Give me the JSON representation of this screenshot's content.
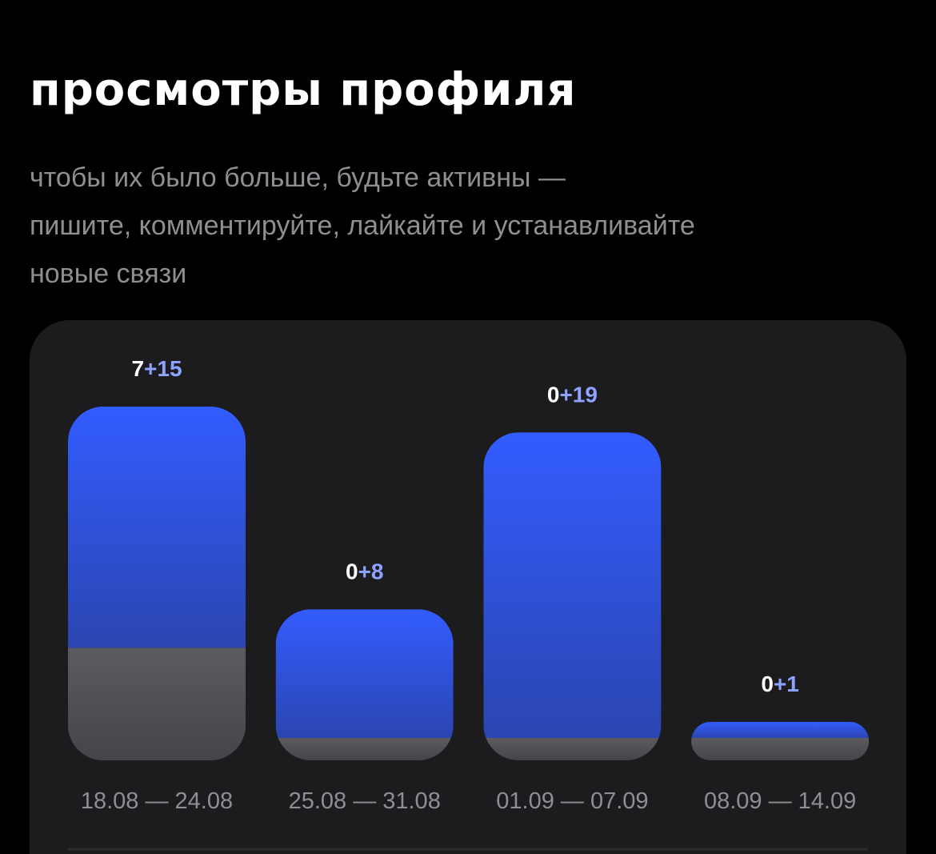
{
  "title": "просмотры профиля",
  "subtitle": [
    "чтобы их было больше, будьте активны —",
    "пишите, комментируйте, лайкайте и устанавливайте",
    "новые связи"
  ],
  "chart_data": {
    "type": "bar",
    "stacked": true,
    "categories": [
      "18.08 — 24.08",
      "25.08 — 31.08",
      "01.09 — 07.09",
      "08.09 — 14.09"
    ],
    "series": [
      {
        "color": "#5b5b60",
        "values": [
          7,
          0,
          0,
          0
        ]
      },
      {
        "color": "#335cff",
        "values": [
          15,
          8,
          19,
          1
        ],
        "value_labels": [
          "+15",
          "+8",
          "+19",
          "+1"
        ]
      }
    ]
  }
}
